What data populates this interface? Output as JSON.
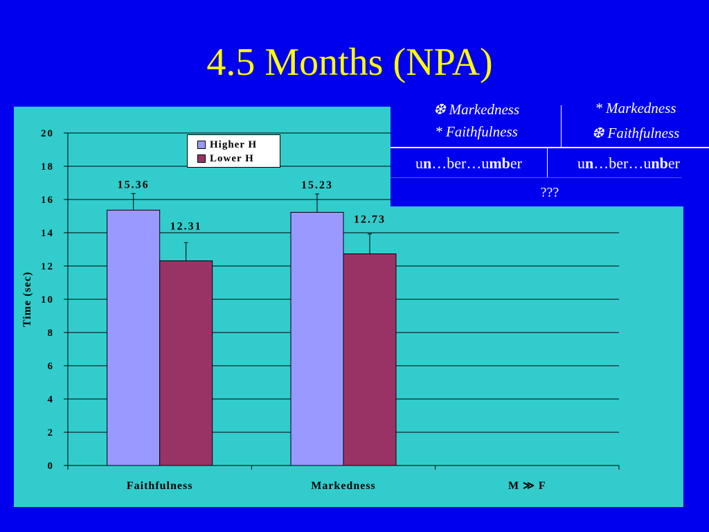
{
  "title": "4.5 Months (NPA)",
  "colors": {
    "background": "#0000ee",
    "title": "#ffff00",
    "chart_background": "#33cccc",
    "higher": "#9999ff",
    "lower": "#993366"
  },
  "chart_data": {
    "type": "bar",
    "categories": [
      "Faithfulness",
      "Markedness",
      "M ≫ F"
    ],
    "series": [
      {
        "name": "Higher H",
        "values": [
          15.36,
          15.23,
          null
        ],
        "errors": [
          1.0,
          1.1,
          null
        ],
        "color": "#9999ff"
      },
      {
        "name": "Lower H",
        "values": [
          12.31,
          12.73,
          null
        ],
        "errors": [
          1.1,
          1.2,
          null
        ],
        "color": "#993366"
      }
    ],
    "data_labels": [
      [
        "15.36",
        "15.23",
        ""
      ],
      [
        "12.31",
        "12.73",
        ""
      ]
    ],
    "ylabel": "Time (sec)",
    "ylim": [
      0,
      20
    ],
    "yticks": [
      "0",
      "2",
      "4",
      "6",
      "8",
      "10",
      "12",
      "14",
      "16",
      "18",
      "20"
    ],
    "grid": true,
    "legend_position": "top-left"
  },
  "table": {
    "col1_header": [
      "❆ Markedness",
      "* Faithfulness"
    ],
    "col2_header": [
      "* Markedness",
      "❆ Faithfulness"
    ],
    "col1_word": {
      "p1": "u",
      "p2": "n",
      "p3": "…ber…u",
      "p4": "mb",
      "p5": "er"
    },
    "col2_word": {
      "p1": "u",
      "p2": "n",
      "p3": "…ber…u",
      "p4": "nb",
      "p5": "er"
    },
    "bottom": "???"
  }
}
